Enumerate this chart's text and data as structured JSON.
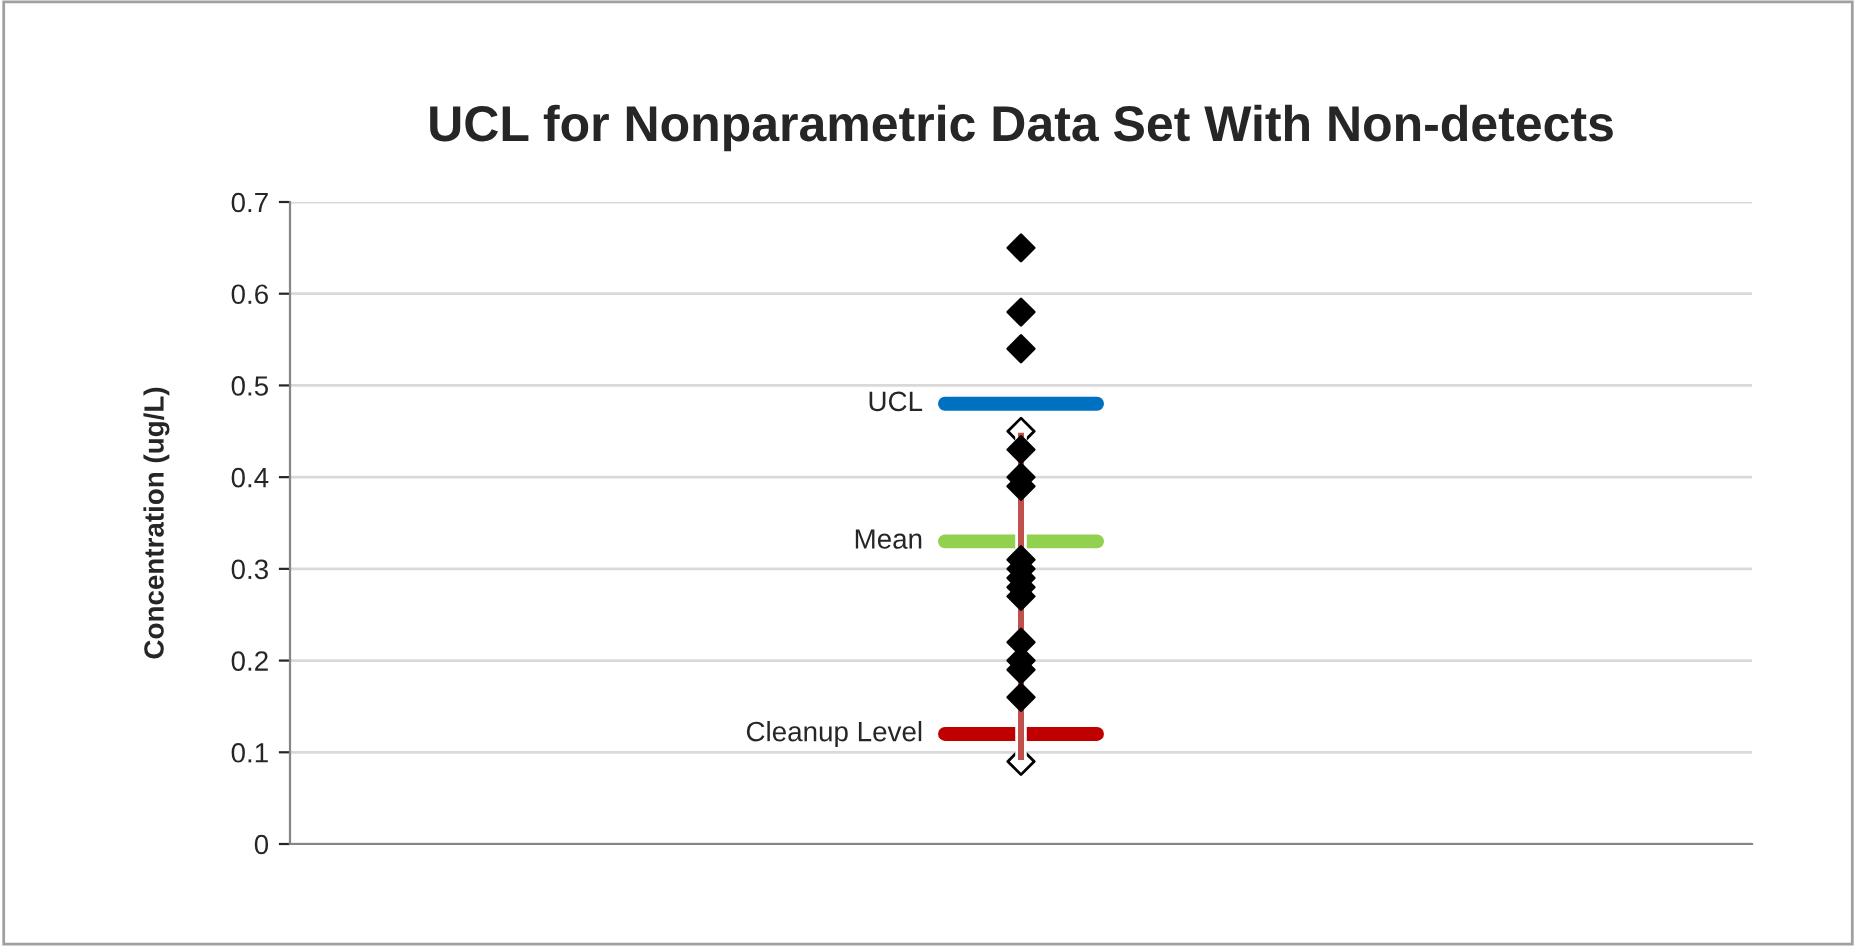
{
  "chart_data": {
    "type": "scatter",
    "title": "UCL for Nonparametric Data Set With Non-detects",
    "ylabel": "Concentration (ug/L)",
    "categories": [
      null
    ],
    "ylim": [
      0,
      0.7
    ],
    "yticks": [
      0,
      0.1,
      0.2,
      0.3,
      0.4,
      0.5,
      0.6,
      0.7
    ],
    "grid": "y",
    "marker": "diamond",
    "ref_lines": [
      {
        "axis": "y",
        "value": 0.48,
        "label": "UCL",
        "color": "#0070c0"
      },
      {
        "axis": "y",
        "value": 0.33,
        "label": "Mean",
        "color": "#92d050"
      },
      {
        "axis": "y",
        "value": 0.12,
        "label": "Cleanup Level",
        "color": "#c00000"
      }
    ],
    "series": [
      {
        "type": "bar",
        "color": "#c0504d",
        "base": [
          0.09
        ],
        "values": [
          0.36
        ]
      },
      {
        "color": "#ffffff",
        "x": [
          null,
          null
        ],
        "values": [
          0.45,
          0.09
        ]
      },
      {
        "color": "#000000",
        "x": [
          null,
          null,
          null,
          null,
          null,
          null,
          null,
          null,
          null,
          null,
          null,
          null,
          null,
          null,
          null
        ],
        "values": [
          0.65,
          0.58,
          0.54,
          0.43,
          0.4,
          0.39,
          0.31,
          0.3,
          0.29,
          0.28,
          0.27,
          0.22,
          0.2,
          0.19,
          0.16
        ]
      }
    ]
  }
}
